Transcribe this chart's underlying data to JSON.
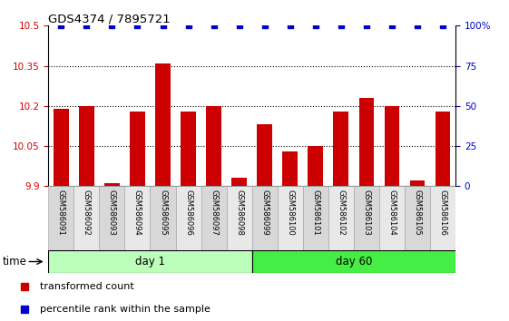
{
  "title": "GDS4374 / 7895721",
  "samples": [
    "GSM586091",
    "GSM586092",
    "GSM586093",
    "GSM586094",
    "GSM586095",
    "GSM586096",
    "GSM586097",
    "GSM586098",
    "GSM586099",
    "GSM586100",
    "GSM586101",
    "GSM586102",
    "GSM586103",
    "GSM586104",
    "GSM586105",
    "GSM586106"
  ],
  "bar_values": [
    10.19,
    10.2,
    9.91,
    10.18,
    10.36,
    10.18,
    10.2,
    9.93,
    10.13,
    10.03,
    10.05,
    10.18,
    10.23,
    10.2,
    9.92,
    10.18
  ],
  "percentile_values": [
    100,
    100,
    100,
    100,
    100,
    100,
    100,
    100,
    100,
    100,
    100,
    100,
    100,
    100,
    100,
    100
  ],
  "day1_count": 8,
  "day60_count": 8,
  "bar_color": "#cc0000",
  "percentile_color": "#0000cc",
  "ymin": 9.9,
  "ymax": 10.5,
  "y2min": 0,
  "y2max": 100,
  "yticks": [
    9.9,
    10.05,
    10.2,
    10.35,
    10.5
  ],
  "y2ticks": [
    0,
    25,
    50,
    75,
    100
  ],
  "ytick_labels": [
    "9.9",
    "10.05",
    "10.2",
    "10.35",
    "10.5"
  ],
  "y2tick_labels": [
    "0",
    "25",
    "50",
    "75",
    "100%"
  ],
  "day1_color": "#bbffbb",
  "day60_color": "#44ee44",
  "day1_label": "day 1",
  "day60_label": "day 60",
  "time_label": "time",
  "legend_bar_label": "transformed count",
  "legend_pct_label": "percentile rank within the sample",
  "cell_color_odd": "#d8d8d8",
  "cell_color_even": "#e8e8e8",
  "plot_bg": "#ffffff",
  "fig_bg": "#ffffff"
}
